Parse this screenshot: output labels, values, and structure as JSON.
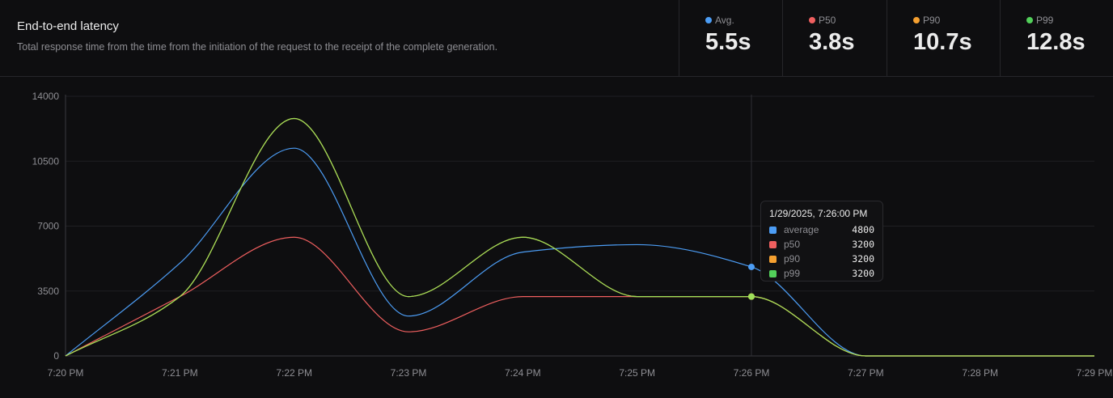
{
  "header": {
    "title": "End-to-end latency",
    "subtitle": "Total response time from the time from the initiation of the request to the receipt of the complete generation."
  },
  "stats": [
    {
      "label": "Avg.",
      "value": "5.5s",
      "color": "#4c9df5"
    },
    {
      "label": "P50",
      "value": "3.8s",
      "color": "#ef5f5f"
    },
    {
      "label": "P90",
      "value": "10.7s",
      "color": "#f5a030"
    },
    {
      "label": "P99",
      "value": "12.8s",
      "color": "#52d05a"
    }
  ],
  "tooltip": {
    "title": "1/29/2025, 7:26:00 PM",
    "rows": [
      {
        "name": "average",
        "value": "4800",
        "color": "#4c9df5"
      },
      {
        "name": "p50",
        "value": "3200",
        "color": "#ef5f5f"
      },
      {
        "name": "p90",
        "value": "3200",
        "color": "#f5a030"
      },
      {
        "name": "p99",
        "value": "3200",
        "color": "#52d05a"
      }
    ]
  },
  "chart_data": {
    "type": "line",
    "categories": [
      "7:20 PM",
      "7:21 PM",
      "7:22 PM",
      "7:23 PM",
      "7:24 PM",
      "7:25 PM",
      "7:26 PM",
      "7:27 PM",
      "7:28 PM",
      "7:29 PM"
    ],
    "yticks": [
      "0",
      "3500",
      "7000",
      "10500",
      "14000"
    ],
    "ylim": [
      0,
      14000
    ],
    "grid": true,
    "hover_index": 6,
    "series": [
      {
        "name": "average",
        "color": "#4c9df5",
        "values": [
          0,
          5000,
          11200,
          2150,
          5600,
          6000,
          4800,
          0,
          0,
          0
        ]
      },
      {
        "name": "p50",
        "color": "#ef5f5f",
        "values": [
          0,
          3200,
          6400,
          1300,
          3200,
          3200,
          3200,
          0,
          0,
          0
        ]
      },
      {
        "name": "p90",
        "color": "#f5a030",
        "values": [
          0,
          3200,
          12800,
          3200,
          6400,
          3200,
          3200,
          0,
          0,
          0
        ]
      },
      {
        "name": "p99",
        "color": "#9ee05a",
        "values": [
          0,
          3200,
          12800,
          3200,
          6400,
          3200,
          3200,
          0,
          0,
          0
        ]
      }
    ]
  }
}
